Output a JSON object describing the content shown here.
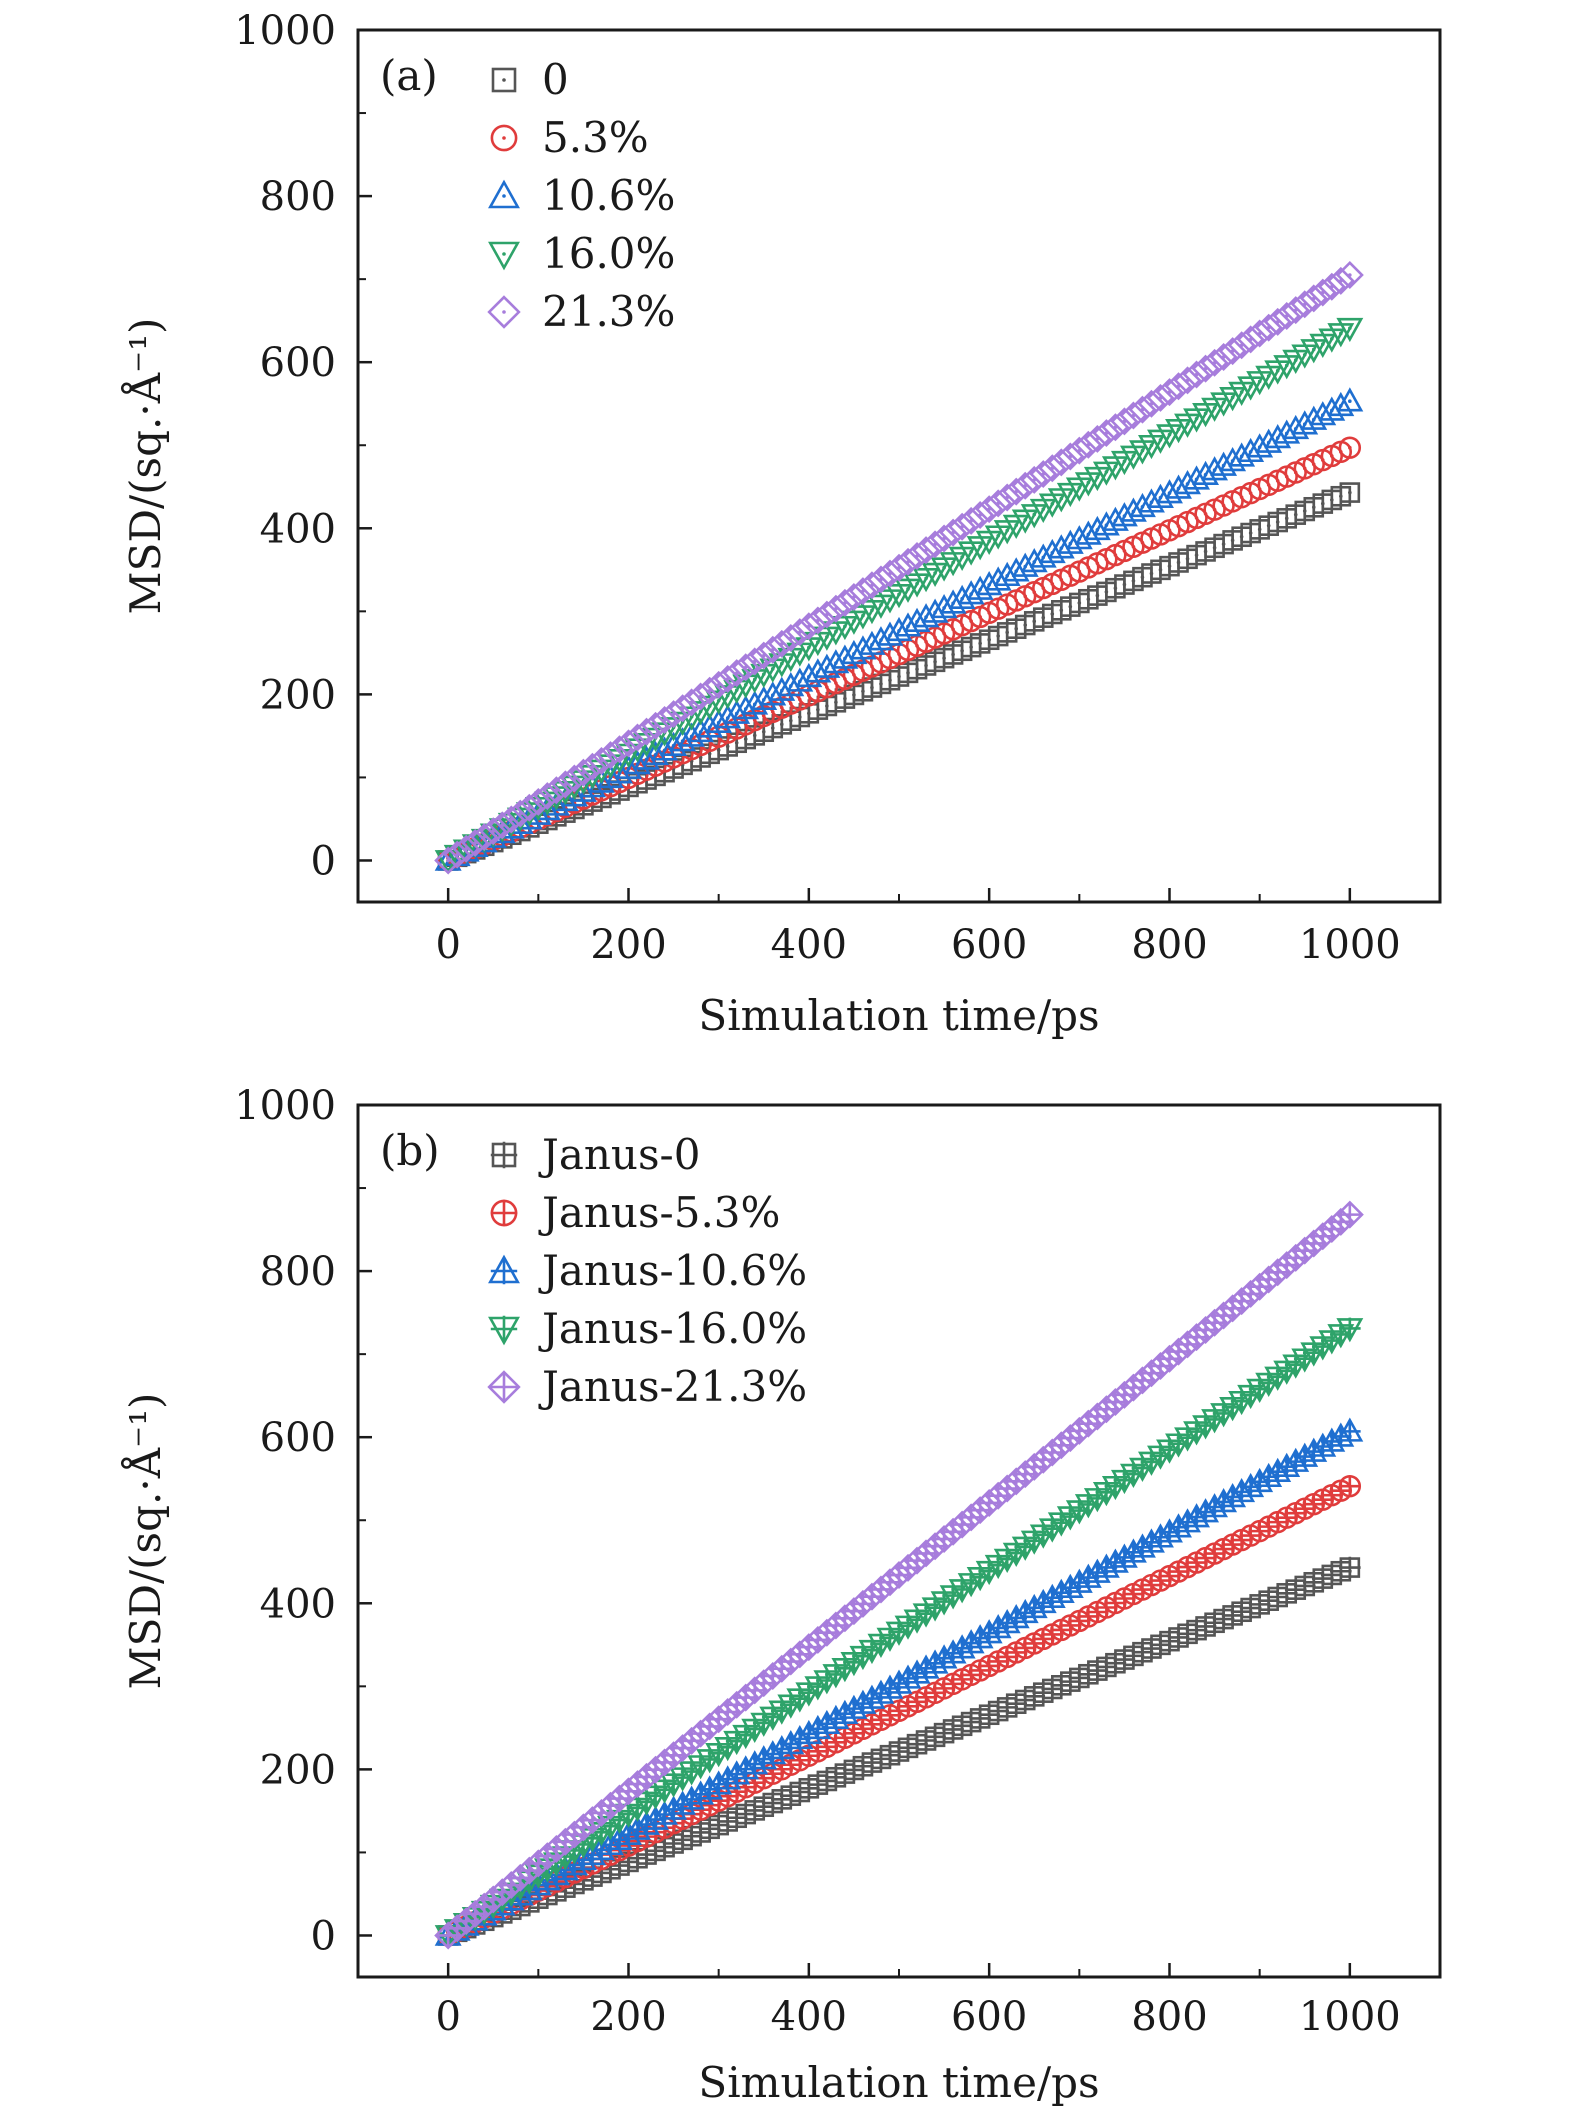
{
  "chart_data": [
    {
      "type": "scatter",
      "panel_label": "(a)",
      "xlabel": "Simulation time/ps",
      "ylabel": "MSD/(sq.·Å⁻¹)",
      "xlim": [
        -100,
        1100
      ],
      "ylim": [
        -50,
        1000
      ],
      "xticks": [
        0,
        200,
        400,
        600,
        800,
        1000
      ],
      "yticks": [
        0,
        200,
        400,
        600,
        800,
        1000
      ],
      "legend_position": "top-left",
      "x": [
        0,
        1000
      ],
      "series": [
        {
          "name": "0",
          "marker": "square-dot",
          "color": "#555555",
          "values": [
            0,
            443
          ]
        },
        {
          "name": "5.3%",
          "marker": "circle-dot",
          "color": "#e03c3c",
          "values": [
            0,
            497
          ]
        },
        {
          "name": "10.6%",
          "marker": "triangle-up-dot",
          "color": "#1f6fd0",
          "values": [
            0,
            553
          ]
        },
        {
          "name": "16.0%",
          "marker": "triangle-down-dot",
          "color": "#2ea36a",
          "values": [
            0,
            641
          ]
        },
        {
          "name": "21.3%",
          "marker": "diamond-dot",
          "color": "#a77ddc",
          "values": [
            0,
            705
          ]
        }
      ]
    },
    {
      "type": "scatter",
      "panel_label": "(b)",
      "xlabel": "Simulation time/ps",
      "ylabel": "MSD/(sq.·Å⁻¹)",
      "xlim": [
        -100,
        1100
      ],
      "ylim": [
        -50,
        1000
      ],
      "xticks": [
        0,
        200,
        400,
        600,
        800,
        1000
      ],
      "yticks": [
        0,
        200,
        400,
        600,
        800,
        1000
      ],
      "legend_position": "top-left",
      "x": [
        0,
        1000
      ],
      "series": [
        {
          "name": "Janus-0",
          "marker": "square-plus",
          "color": "#555555",
          "values": [
            0,
            443
          ]
        },
        {
          "name": "Janus-5.3%",
          "marker": "circle-plus",
          "color": "#e03c3c",
          "values": [
            0,
            541
          ]
        },
        {
          "name": "Janus-10.6%",
          "marker": "triangle-up-plus",
          "color": "#1f6fd0",
          "values": [
            0,
            607
          ]
        },
        {
          "name": "Janus-16.0%",
          "marker": "triangle-down-plus",
          "color": "#2ea36a",
          "values": [
            0,
            731
          ]
        },
        {
          "name": "Janus-21.3%",
          "marker": "diamond-plus",
          "color": "#a77ddc",
          "values": [
            0,
            868
          ]
        }
      ]
    }
  ]
}
